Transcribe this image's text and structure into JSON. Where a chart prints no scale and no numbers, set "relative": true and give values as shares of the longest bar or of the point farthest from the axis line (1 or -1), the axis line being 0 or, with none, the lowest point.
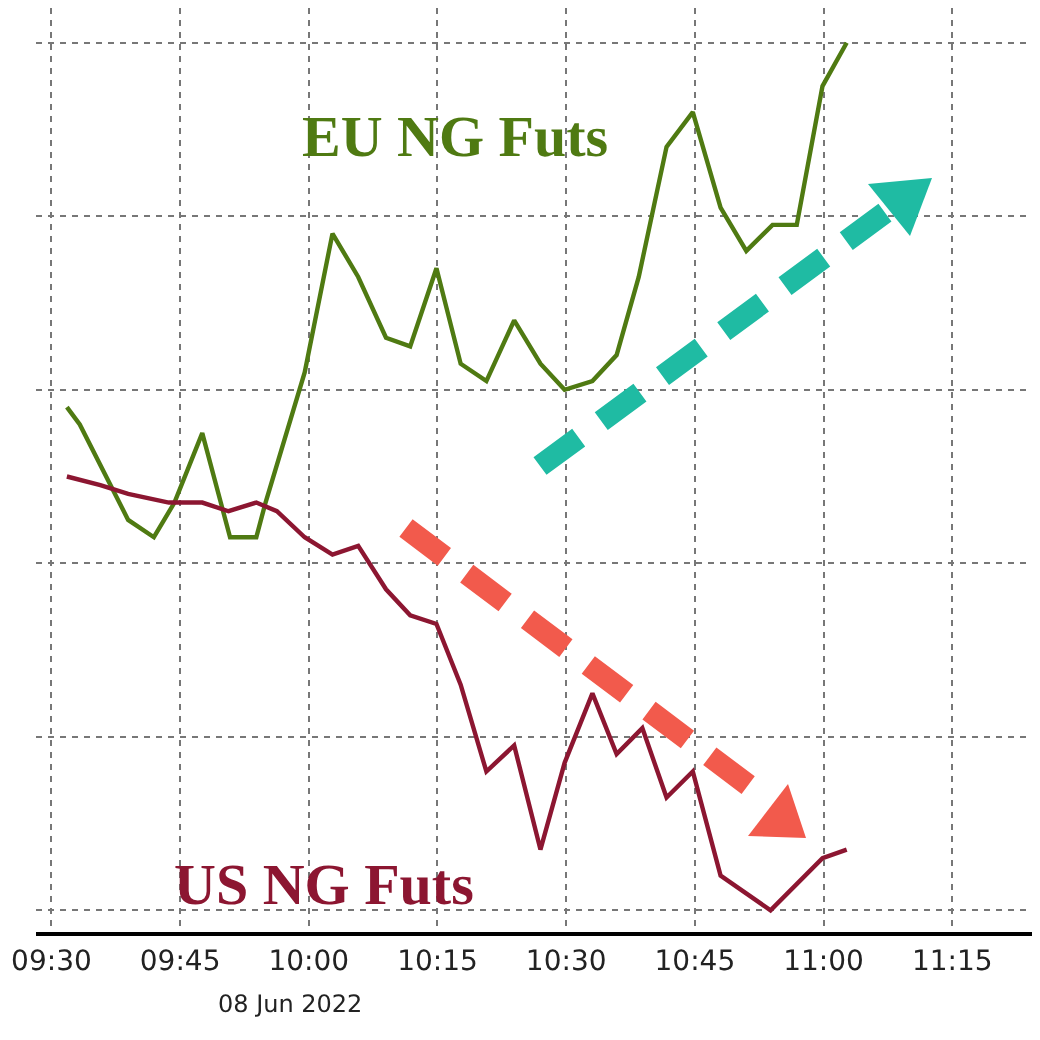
{
  "chart_data": {
    "type": "line",
    "relative": true,
    "grid": true,
    "xlim": [
      9.47,
      11.405
    ],
    "xticks": [
      {
        "value": 9.5,
        "label": "09:30"
      },
      {
        "value": 9.75,
        "label": "09:45"
      },
      {
        "value": 10,
        "label": "10:00"
      },
      {
        "value": 10.25,
        "label": "10:15"
      },
      {
        "value": 10.5,
        "label": "10:30"
      },
      {
        "value": 10.75,
        "label": "10:45"
      },
      {
        "value": 11,
        "label": "11:00"
      },
      {
        "value": 11.25,
        "label": "11:15"
      }
    ],
    "series": [
      {
        "name": "EU NG Futs",
        "color": "#4f7a12",
        "x": [
          9.53,
          9.555,
          9.649,
          9.699,
          9.739,
          9.793,
          9.829,
          9.847,
          9.898,
          9.916,
          9.992,
          10.046,
          10.096,
          10.15,
          10.197,
          10.248,
          10.295,
          10.345,
          10.399,
          10.45,
          10.497,
          10.551,
          10.598,
          10.641,
          10.695,
          10.746,
          10.8,
          10.85,
          10.901,
          10.948,
          10.998,
          11.045
        ],
        "values": [
          0.58,
          0.56,
          0.45,
          0.43,
          0.47,
          0.55,
          0.47,
          0.43,
          0.43,
          0.47,
          0.62,
          0.78,
          0.73,
          0.66,
          0.65,
          0.74,
          0.63,
          0.61,
          0.68,
          0.63,
          0.6,
          0.61,
          0.64,
          0.73,
          0.88,
          0.92,
          0.81,
          0.76,
          0.79,
          0.79,
          0.95,
          1
        ]
      },
      {
        "name": "US NG Futs",
        "color": "#8c1631",
        "x": [
          9.53,
          9.595,
          9.649,
          9.728,
          9.793,
          9.844,
          9.898,
          9.938,
          9.992,
          10.046,
          10.096,
          10.15,
          10.197,
          10.248,
          10.295,
          10.345,
          10.399,
          10.45,
          10.497,
          10.551,
          10.598,
          10.648,
          10.695,
          10.746,
          10.8,
          10.897,
          10.998,
          11.045
        ],
        "values": [
          0.5,
          0.49,
          0.48,
          0.47,
          0.47,
          0.46,
          0.47,
          0.46,
          0.43,
          0.41,
          0.42,
          0.37,
          0.34,
          0.33,
          0.26,
          0.16,
          0.19,
          0.07,
          0.17,
          0.25,
          0.18,
          0.21,
          0.13,
          0.16,
          0.04,
          0,
          0.06,
          0.07
        ]
      }
    ],
    "annotations": [
      "08 Jun 2022"
    ]
  }
}
